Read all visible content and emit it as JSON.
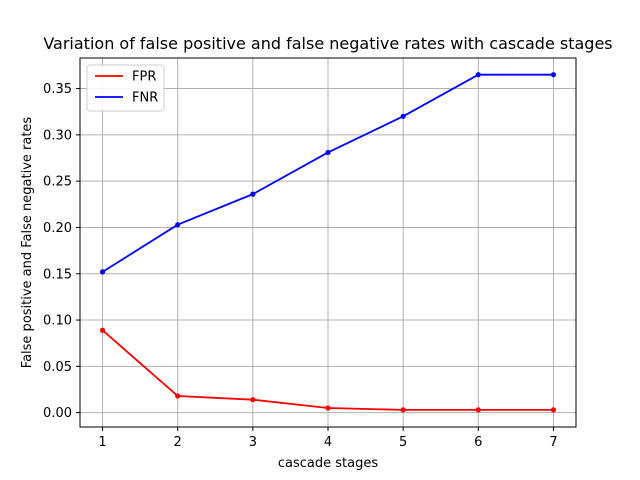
{
  "chart_data": {
    "type": "line",
    "title": "Variation of false positive and false negative rates with cascade stages",
    "xlabel": "cascade stages",
    "ylabel": "False positive and False negative rates",
    "x": [
      1,
      2,
      3,
      4,
      5,
      6,
      7
    ],
    "xlim": [
      0.7,
      7.3
    ],
    "ylim": [
      -0.0155,
      0.383
    ],
    "xticks": [
      1,
      2,
      3,
      4,
      5,
      6,
      7
    ],
    "xtick_labels": [
      "1",
      "2",
      "3",
      "4",
      "5",
      "6",
      "7"
    ],
    "yticks": [
      0.0,
      0.05,
      0.1,
      0.15,
      0.2,
      0.25,
      0.3,
      0.35
    ],
    "ytick_labels": [
      "0.00",
      "0.05",
      "0.10",
      "0.15",
      "0.20",
      "0.25",
      "0.30",
      "0.35"
    ],
    "grid": true,
    "legend": "top-left",
    "series": [
      {
        "name": "FPR",
        "color": "#ff0000",
        "values": [
          0.089,
          0.018,
          0.014,
          0.005,
          0.003,
          0.003,
          0.003
        ]
      },
      {
        "name": "FNR",
        "color": "#0000ff",
        "values": [
          0.152,
          0.203,
          0.236,
          0.281,
          0.32,
          0.365,
          0.365
        ]
      }
    ]
  }
}
